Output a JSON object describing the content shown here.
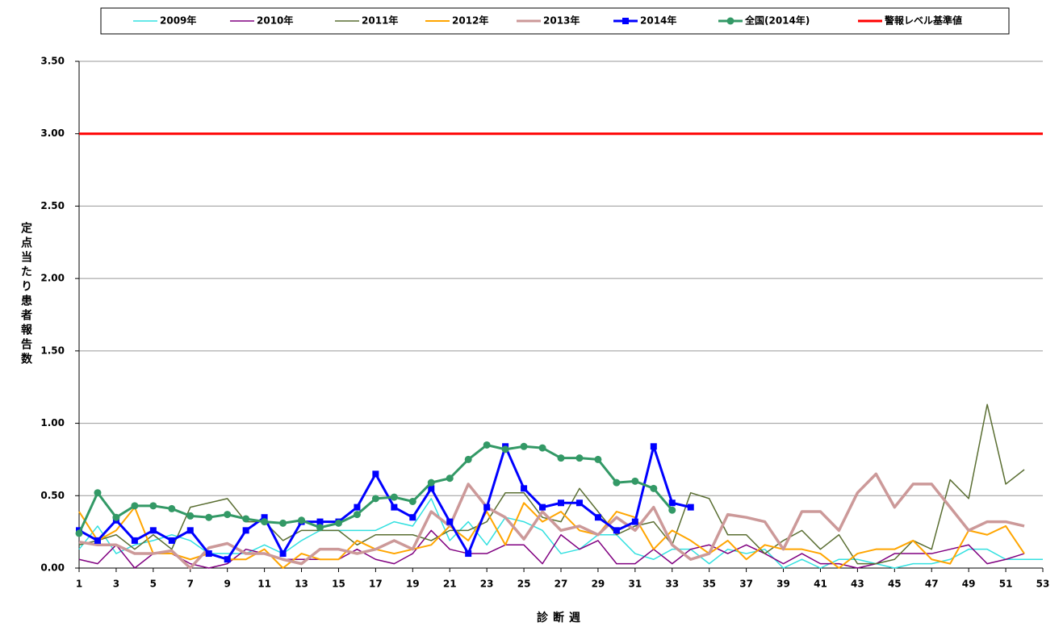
{
  "chart_data": {
    "type": "line",
    "x": [
      1,
      2,
      3,
      4,
      5,
      6,
      7,
      8,
      9,
      10,
      11,
      12,
      13,
      14,
      15,
      16,
      17,
      18,
      19,
      20,
      21,
      22,
      23,
      24,
      25,
      26,
      27,
      28,
      29,
      30,
      31,
      32,
      33,
      34,
      35,
      36,
      37,
      38,
      39,
      40,
      41,
      42,
      43,
      44,
      45,
      46,
      47,
      48,
      49,
      50,
      51,
      52,
      53
    ],
    "xlim": [
      1,
      53
    ],
    "xticks": [
      1,
      3,
      5,
      7,
      9,
      11,
      13,
      15,
      17,
      19,
      21,
      23,
      25,
      27,
      29,
      31,
      33,
      35,
      37,
      39,
      41,
      43,
      45,
      47,
      49,
      51,
      53
    ],
    "ylim": [
      0,
      3.5
    ],
    "yticks": [
      {
        "value": 0,
        "label": "0.00"
      },
      {
        "value": 0.5,
        "label": "0.50"
      },
      {
        "value": 1,
        "label": "1.00"
      },
      {
        "value": 1.5,
        "label": "1.50"
      },
      {
        "value": 2,
        "label": "2.00"
      },
      {
        "value": 2.5,
        "label": "2.50"
      },
      {
        "value": 3,
        "label": "3.00"
      },
      {
        "value": 3.5,
        "label": "3.50"
      }
    ],
    "grid": true,
    "legend": "top",
    "x_label": "診断週",
    "y_label": "定点当たり患者報告数",
    "series": [
      {
        "name": "2009年",
        "color": "#33e0e0",
        "width": 1.5,
        "values": [
          0.13,
          0.29,
          0.1,
          0.16,
          0.19,
          0.23,
          0.19,
          0.1,
          0.1,
          0.1,
          0.16,
          0.1,
          0.19,
          0.26,
          0.26,
          0.26,
          0.26,
          0.32,
          0.29,
          0.48,
          0.19,
          0.32,
          0.16,
          0.35,
          0.32,
          0.26,
          0.1,
          0.13,
          0.23,
          0.23,
          0.1,
          0.06,
          0.13,
          0.13,
          0.03,
          0.13,
          0.1,
          0.13,
          0.0,
          0.06,
          0.0,
          0.06,
          0.06,
          0.03,
          0.0,
          0.03,
          0.03,
          0.06,
          0.13,
          0.13,
          0.06,
          0.06,
          0.06
        ]
      },
      {
        "name": "2010年",
        "color": "#800080",
        "width": 1.5,
        "values": [
          0.06,
          0.03,
          0.16,
          0.0,
          0.1,
          0.1,
          0.03,
          0.0,
          0.03,
          0.13,
          0.1,
          0.06,
          0.06,
          0.06,
          0.06,
          0.13,
          0.06,
          0.03,
          0.1,
          0.26,
          0.13,
          0.1,
          0.1,
          0.16,
          0.16,
          0.03,
          0.23,
          0.13,
          0.19,
          0.03,
          0.03,
          0.13,
          0.03,
          0.13,
          0.16,
          0.1,
          0.16,
          0.1,
          0.03,
          0.1,
          0.03,
          0.03,
          0.0,
          0.03,
          0.1,
          0.1,
          0.1,
          0.13,
          0.16,
          0.03,
          0.06,
          0.1,
          null
        ]
      },
      {
        "name": "2011年",
        "color": "#5a6e32",
        "width": 1.5,
        "values": [
          0.16,
          0.19,
          0.23,
          0.13,
          0.23,
          0.13,
          0.42,
          0.45,
          0.48,
          0.32,
          0.32,
          0.19,
          0.26,
          0.26,
          0.26,
          0.16,
          0.23,
          0.23,
          0.23,
          0.19,
          0.26,
          0.26,
          0.32,
          0.52,
          0.52,
          0.35,
          0.32,
          0.55,
          0.39,
          0.23,
          0.29,
          0.32,
          0.16,
          0.52,
          0.48,
          0.23,
          0.23,
          0.1,
          0.19,
          0.26,
          0.13,
          0.23,
          0.03,
          0.03,
          0.06,
          0.19,
          0.13,
          0.61,
          0.48,
          1.13,
          0.58,
          0.68,
          null
        ]
      },
      {
        "name": "2012年",
        "color": "#ffa500",
        "width": 2,
        "values": [
          0.39,
          0.19,
          0.26,
          0.42,
          0.1,
          0.1,
          0.06,
          0.1,
          0.06,
          0.06,
          0.13,
          0.0,
          0.1,
          0.06,
          0.06,
          0.19,
          0.13,
          0.1,
          0.13,
          0.16,
          0.29,
          0.19,
          0.39,
          0.16,
          0.45,
          0.32,
          0.39,
          0.26,
          0.23,
          0.39,
          0.35,
          0.13,
          0.26,
          0.19,
          0.1,
          0.19,
          0.06,
          0.16,
          0.13,
          0.13,
          0.1,
          0.0,
          0.1,
          0.13,
          0.13,
          0.19,
          0.06,
          0.03,
          0.26,
          0.23,
          0.29,
          0.1,
          null
        ]
      },
      {
        "name": "2013年",
        "color": "#cc9999",
        "width": 3.5,
        "values": [
          0.18,
          0.16,
          0.16,
          0.1,
          0.1,
          0.12,
          0.0,
          0.14,
          0.17,
          0.1,
          0.1,
          0.06,
          0.03,
          0.13,
          0.13,
          0.1,
          0.13,
          0.19,
          0.13,
          0.39,
          0.29,
          0.58,
          0.42,
          0.35,
          0.2,
          0.39,
          0.26,
          0.29,
          0.23,
          0.35,
          0.26,
          0.42,
          0.16,
          0.06,
          0.1,
          0.37,
          0.35,
          0.32,
          0.13,
          0.39,
          0.39,
          0.26,
          0.52,
          0.65,
          0.42,
          0.58,
          0.58,
          0.42,
          0.26,
          0.32,
          0.32,
          0.29,
          null
        ]
      },
      {
        "name": "2014年",
        "color": "#0000ff",
        "width": 3,
        "marker": "square",
        "values": [
          0.26,
          0.19,
          0.33,
          0.19,
          0.26,
          0.19,
          0.26,
          0.1,
          0.06,
          0.26,
          0.35,
          0.1,
          0.32,
          0.32,
          0.32,
          0.42,
          0.65,
          0.42,
          0.35,
          0.55,
          0.32,
          0.1,
          0.42,
          0.84,
          0.55,
          0.42,
          0.45,
          0.45,
          0.35,
          0.26,
          0.32,
          0.84,
          0.45,
          0.42,
          null,
          null,
          null,
          null,
          null,
          null,
          null,
          null,
          null,
          null,
          null,
          null,
          null,
          null,
          null,
          null,
          null,
          null,
          null
        ]
      },
      {
        "name": "全国(2014年)",
        "color": "#339966",
        "width": 3,
        "marker": "circle",
        "values": [
          0.24,
          0.52,
          0.35,
          0.43,
          0.43,
          0.41,
          0.36,
          0.35,
          0.37,
          0.34,
          0.32,
          0.31,
          0.33,
          0.28,
          0.31,
          0.37,
          0.48,
          0.49,
          0.46,
          0.59,
          0.62,
          0.75,
          0.85,
          0.82,
          0.84,
          0.83,
          0.76,
          0.76,
          0.75,
          0.59,
          0.6,
          0.55,
          0.4,
          null,
          null,
          null,
          null,
          null,
          null,
          null,
          null,
          null,
          null,
          null,
          null,
          null,
          null,
          null,
          null,
          null,
          null,
          null,
          null
        ]
      },
      {
        "name": "警報レベル基準値",
        "color": "#ff0000",
        "width": 3,
        "values": [
          3,
          3,
          3,
          3,
          3,
          3,
          3,
          3,
          3,
          3,
          3,
          3,
          3,
          3,
          3,
          3,
          3,
          3,
          3,
          3,
          3,
          3,
          3,
          3,
          3,
          3,
          3,
          3,
          3,
          3,
          3,
          3,
          3,
          3,
          3,
          3,
          3,
          3,
          3,
          3,
          3,
          3,
          3,
          3,
          3,
          3,
          3,
          3,
          3,
          3,
          3,
          3,
          3
        ]
      }
    ]
  }
}
